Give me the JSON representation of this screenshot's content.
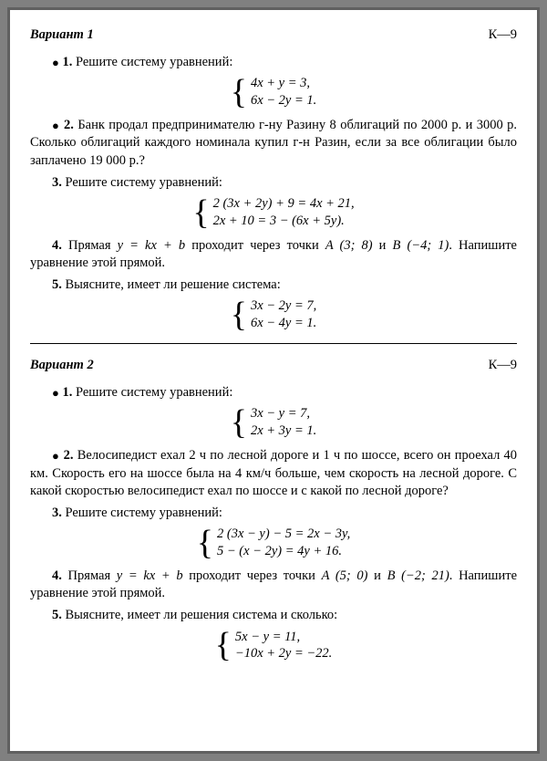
{
  "variant1": {
    "title": "Вариант 1",
    "klabel": "К—9",
    "p1_intro": "Решите систему уравнений:",
    "p1_eq1": "4x + y = 3,",
    "p1_eq2": "6x − 2y = 1.",
    "p2_text": "Банк продал предпринимателю г-ну Разину 8 об­лигаций по 2000 р. и 3000 р. Сколько облигаций каждо­го номинала купил г-н Разин, если за все облигации бы­ло заплачено 19 000 р.?",
    "p3_intro": "Решите систему уравнений:",
    "p3_eq1": "2 (3x + 2y) + 9 = 4x + 21,",
    "p3_eq2": "2x + 10 = 3 − (6x + 5y).",
    "p4_text_a": "Прямая ",
    "p4_formula": "y = kx + b",
    "p4_text_b": " проходит через точки ",
    "p4_pointA": "A (3; 8)",
    "p4_text_c": " и ",
    "p4_pointB": "B (−4; 1)",
    "p4_text_d": ". Напишите уравнение этой прямой.",
    "p5_intro": "Выясните, имеет ли решение система:",
    "p5_eq1": "3x − 2y = 7,",
    "p5_eq2": "6x − 4y = 1."
  },
  "variant2": {
    "title": "Вариант 2",
    "klabel": "К—9",
    "p1_intro": "Решите систему уравнений:",
    "p1_eq1": "3x − y = 7,",
    "p1_eq2": "2x + 3y = 1.",
    "p2_text": "Велосипедист ехал 2 ч по лесной дороге и 1 ч по шоссе, всего он проехал 40 км. Скорость его на шоссе была на 4 км/ч больше, чем скорость на лесной дороге. С какой скоростью велосипедист ехал по шоссе и с какой по лесной дороге?",
    "p3_intro": "Решите систему уравнений:",
    "p3_eq1": "2 (3x − y) − 5 = 2x − 3y,",
    "p3_eq2": "5 − (x − 2y) = 4y + 16.",
    "p4_text_a": "Прямая ",
    "p4_formula": "y = kx + b",
    "p4_text_b": " проходит через точки ",
    "p4_pointA": "A (5; 0)",
    "p4_text_c": " и ",
    "p4_pointB": "B (−2; 21)",
    "p4_text_d": ". Напишите уравнение этой прямой.",
    "p5_intro": "Выясните, имеет ли решения система и сколько:",
    "p5_eq1": "5x − y = 11,",
    "p5_eq2": "−10x + 2y = −22."
  }
}
